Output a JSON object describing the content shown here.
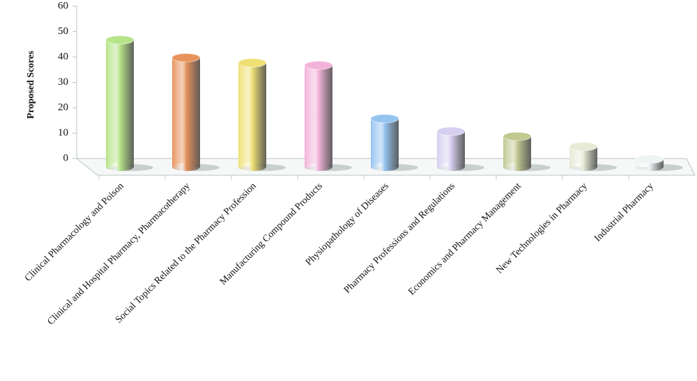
{
  "chart_data": {
    "type": "bar3d",
    "y_label": "Proposed Scores",
    "categories": [
      "Clinical Pharmacology and Poison",
      "Clinical and Hospital Pharmacy, Pharmacotherapy",
      "Social Topics Related to the Pharmacy Profession",
      "Manufacturing Compound Products",
      "Physiopathology of Diseases",
      "Pharmacy Professions and Regulations",
      "Economics and Pharmacy Management",
      "New Technologies in Pharmacy",
      "Industrial Pharmacy"
    ],
    "values": [
      50,
      43,
      41,
      40,
      19,
      14,
      12,
      8,
      3
    ],
    "colors": [
      "#b6e488",
      "#e8935c",
      "#efe074",
      "#f3b2d9",
      "#94c3f0",
      "#d6cff0",
      "#c1c891",
      "#e6ead6",
      "#eef3f3"
    ],
    "ylim": [
      0,
      60
    ],
    "yticks": [
      0,
      10,
      20,
      30,
      40,
      50,
      60
    ]
  }
}
